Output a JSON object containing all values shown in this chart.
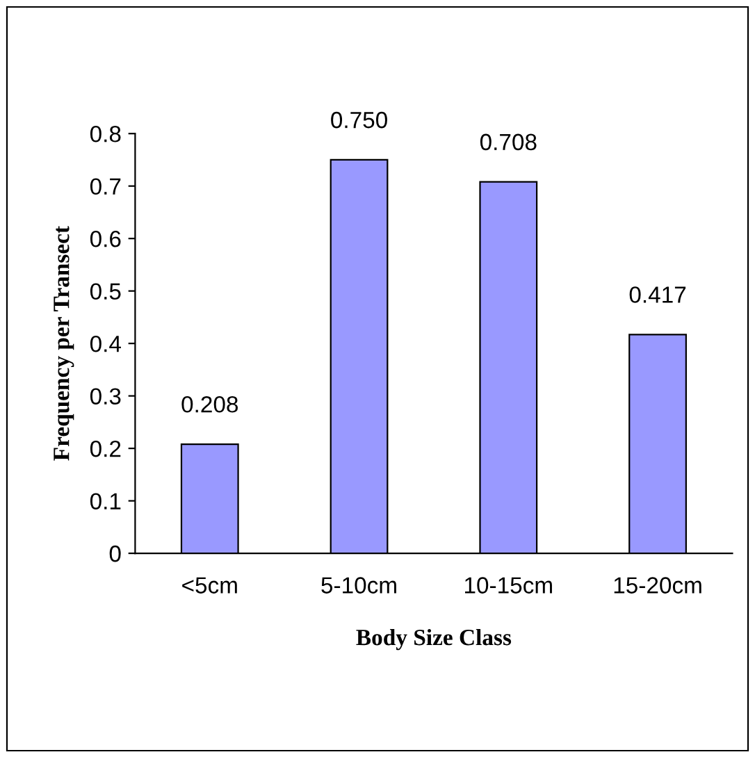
{
  "chart_data": {
    "type": "bar",
    "xlabel": "Body Size Class",
    "ylabel": "Frequency per Transect",
    "categories": [
      "<5cm",
      "5-10cm",
      "10-15cm",
      "15-20cm"
    ],
    "values": [
      0.208,
      0.75,
      0.708,
      0.417
    ],
    "value_labels": [
      "0.208",
      "0.750",
      "0.708",
      "0.417"
    ],
    "color": "#9999ff",
    "ylim": [
      0,
      0.8
    ],
    "yticks": [
      0,
      0.1,
      0.2,
      0.3,
      0.4,
      0.5,
      0.6,
      0.7,
      0.8
    ],
    "grid": false,
    "legend": false
  }
}
